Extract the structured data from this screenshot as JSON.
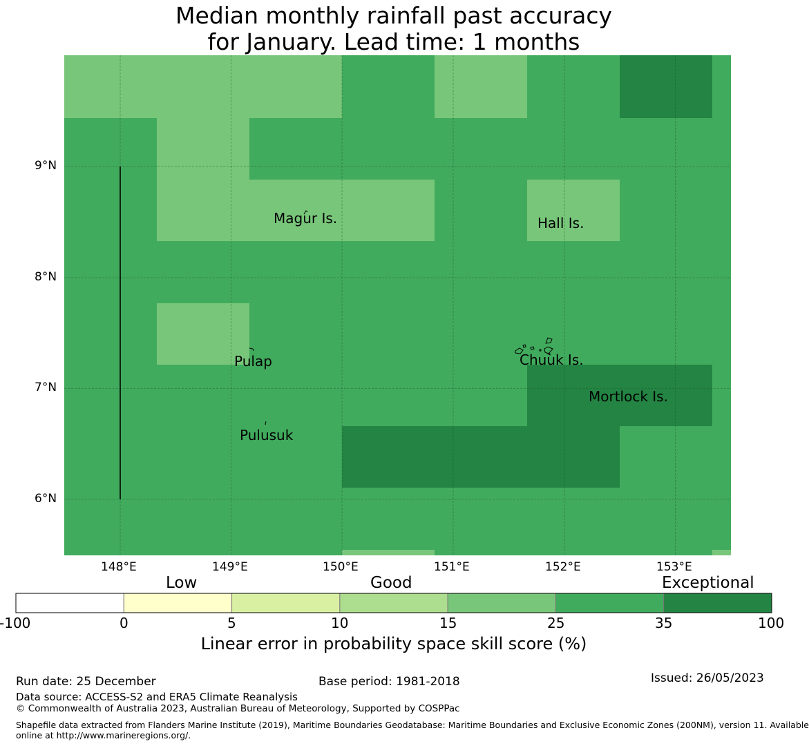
{
  "title": {
    "line1": "Median monthly rainfall past accuracy",
    "line2": "for January. Lead time: 1 months"
  },
  "map": {
    "lon_range": [
      147.5,
      153.5
    ],
    "lat_range": [
      5.5,
      10.0
    ],
    "lat_labels": [
      "9°N",
      "8°N",
      "7°N",
      "6°N"
    ],
    "lon_labels": [
      "148°E",
      "149°E",
      "150°E",
      "151°E",
      "152°E",
      "153°E"
    ],
    "places": [
      "Magur Is.",
      "Hall Is.",
      "Pulap",
      "Chuuk Is.",
      "Mortlock Is.",
      "Pulusuk"
    ],
    "category_colors": {
      "good_15_25": "#78c67a",
      "exc_25_35": "#41ab5d",
      "exc_35_100": "#238443"
    }
  },
  "colorbar": {
    "category_labels": [
      "Low",
      "Good",
      "Exceptional"
    ],
    "ticks": [
      "-100",
      "0",
      "5",
      "10",
      "15",
      "25",
      "35",
      "100"
    ],
    "colors": [
      "#ffffff",
      "#ffffcc",
      "#d9f0a3",
      "#addd8e",
      "#78c679",
      "#41ab5d",
      "#238443"
    ],
    "title": "Linear error in probability space skill score (%)"
  },
  "footer": {
    "run_date": "Run date: 25 December",
    "base_period": "Base period: 1981-2018",
    "issued": "Issued: 26/05/2023",
    "data_source": "Data source: ACCESS-S2 and ERA5 Climate Reanalysis",
    "copyright": "© Commonwealth of Australia 2023, Australian Bureau of Meteorology, Supported by COSPPac",
    "shapefile_line1": "Shapefile data extracted from Flanders Marine Institute (2019), Maritime Boundaries Geodatabase: Maritime Boundaries and Exclusive Economic Zones (200NM), version 11. Available",
    "shapefile_line2": "online at http://www.marineregions.org/."
  }
}
